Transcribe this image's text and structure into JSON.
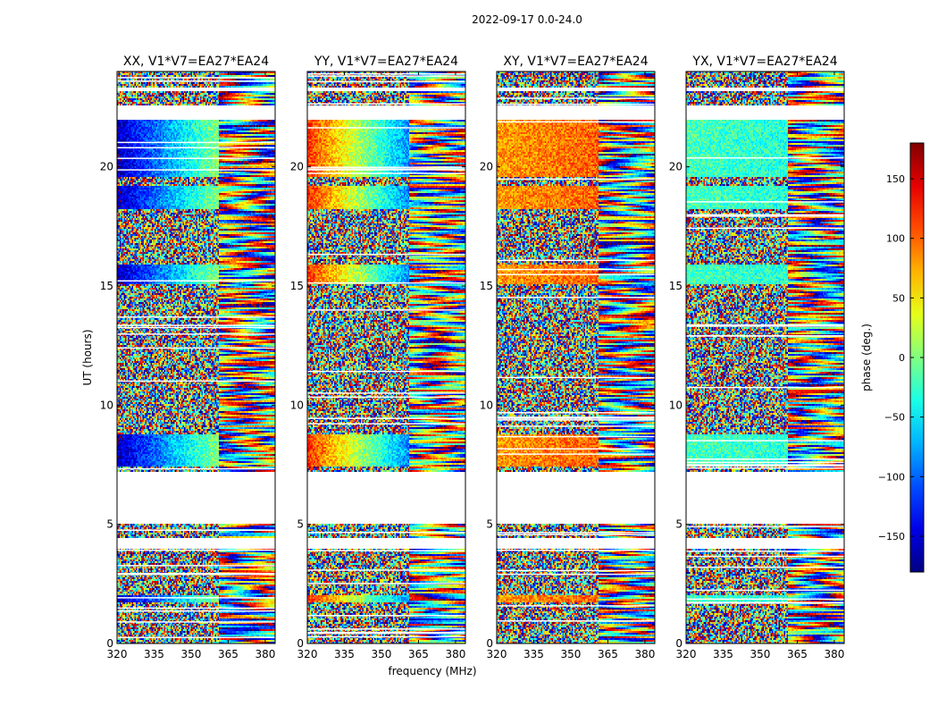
{
  "figure": {
    "suptitle": "2022-09-17 0.0-24.0",
    "xlabel": "frequency (MHz)",
    "ylabel": "UT (hours)",
    "colorbar_label": "phase (deg.)"
  },
  "chart_data": {
    "type": "heatmap",
    "colormap": "jet",
    "xlim": [
      320,
      384
    ],
    "ylim": [
      0,
      24
    ],
    "x_ticks": [
      320,
      335,
      350,
      365,
      380
    ],
    "y_ticks": [
      0,
      5,
      10,
      15,
      20
    ],
    "color_range": [
      -180,
      180
    ],
    "colorbar_ticks": [
      150,
      100,
      50,
      0,
      -50,
      -100,
      -150
    ],
    "panels": [
      {
        "title": "XX, V1*V7=EA27*EA24",
        "start_phase": -160,
        "phase_slope": 4.0,
        "fringe_from_mhz": 361
      },
      {
        "title": "YY, V1*V7=EA27*EA24",
        "start_phase": 120,
        "phase_slope": -5.0,
        "fringe_from_mhz": 361
      },
      {
        "title": "XY, V1*V7=EA27*EA24",
        "start_phase": 80,
        "phase_slope": 0.5,
        "fringe_from_mhz": 361
      },
      {
        "title": "YX, V1*V7=EA27*EA24",
        "start_phase": -20,
        "phase_slope": -0.3,
        "fringe_from_mhz": 361
      }
    ],
    "coherent_blocks_ut": [
      [
        19.6,
        22.0
      ],
      [
        18.2,
        19.2
      ],
      [
        15.1,
        15.9
      ],
      [
        7.4,
        8.8
      ],
      [
        1.7,
        2.0
      ]
    ],
    "no_data_ut": [
      [
        4.0,
        4.4
      ],
      [
        5.0,
        7.2
      ],
      [
        22.0,
        22.6
      ],
      [
        23.2,
        23.35
      ]
    ]
  }
}
